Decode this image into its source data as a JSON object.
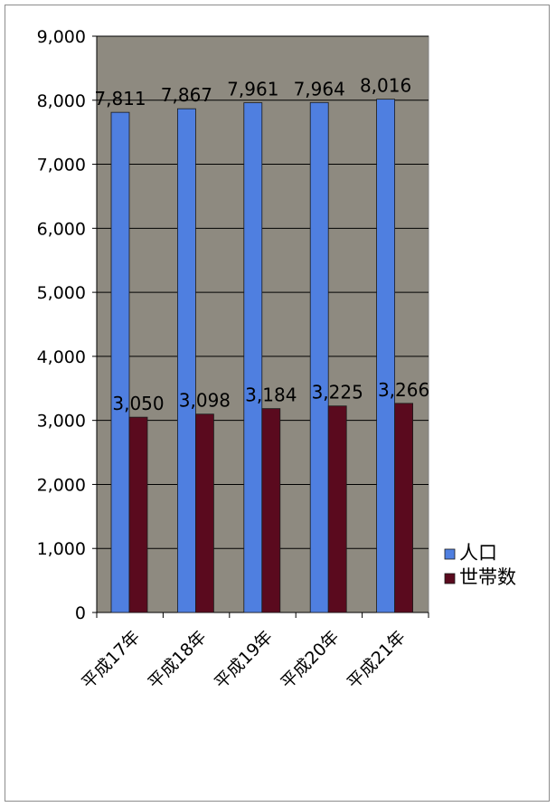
{
  "chart_data": {
    "type": "bar",
    "categories": [
      "平成17年",
      "平成18年",
      "平成19年",
      "平成20年",
      "平成21年"
    ],
    "series": [
      {
        "name": "人口",
        "values": [
          7811,
          7867,
          7961,
          7964,
          8016
        ],
        "color": "#4f7fe0"
      },
      {
        "name": "世帯数",
        "values": [
          3050,
          3098,
          3184,
          3225,
          3266
        ],
        "color": "#5a0a1e"
      }
    ],
    "value_labels": [
      [
        "7,811",
        "7,867",
        "7,961",
        "7,964",
        "8,016"
      ],
      [
        "3,050",
        "3,098",
        "3,184",
        "3,225",
        "3,266"
      ]
    ],
    "yticks": [
      "0",
      "1,000",
      "2,000",
      "3,000",
      "4,000",
      "5,000",
      "6,000",
      "7,000",
      "8,000",
      "9,000"
    ],
    "ylim": [
      0,
      9000
    ],
    "grid": true,
    "legend_position": "right",
    "plot_background": "#8e8a80"
  }
}
